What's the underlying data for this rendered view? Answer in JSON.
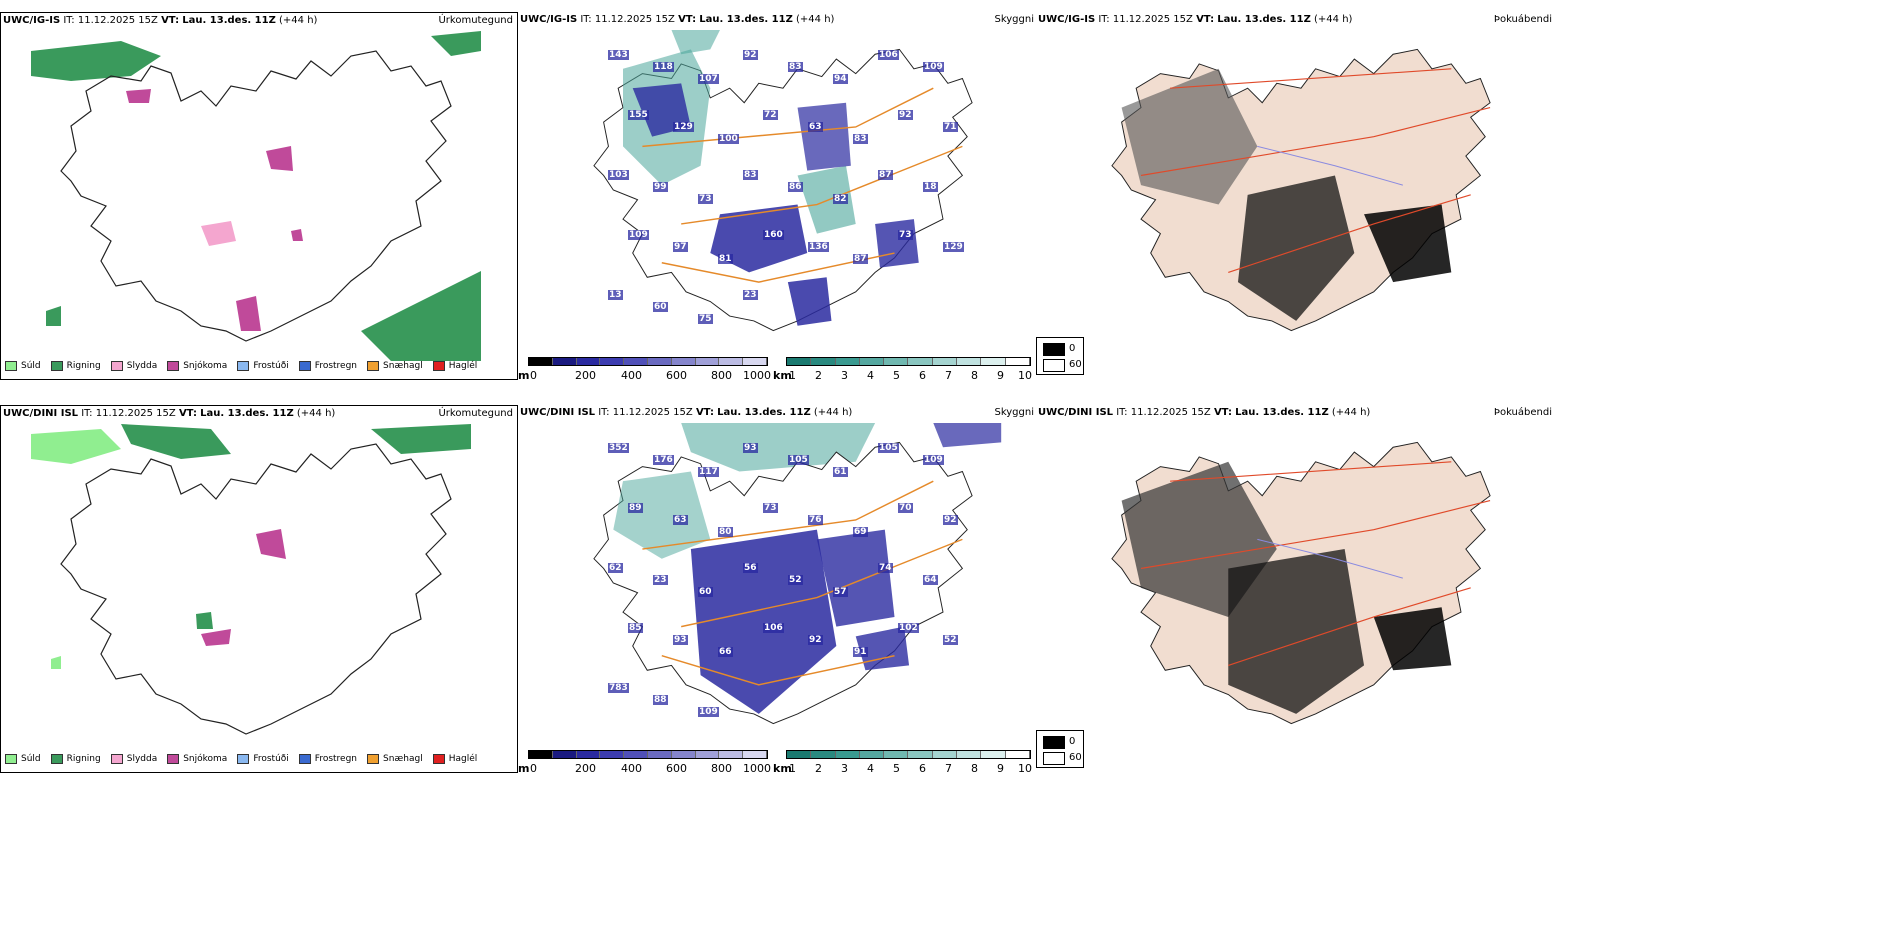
{
  "rows": [
    {
      "model": "UWC/IG-IS",
      "it_label": "IT:",
      "it_value": "11.12.2025 15Z",
      "vt_label": "VT:",
      "vt_value": "Lau. 13.des. 11Z",
      "lead": "(+44 h)",
      "precip_title": "Úrkomutegund",
      "vis_title": "Skyggni",
      "fog_title": "Þokuábendi",
      "cloud_labels": [
        "143",
        "118",
        "107",
        "92",
        "83",
        "94",
        "106",
        "109",
        "155",
        "129",
        "100",
        "72",
        "63",
        "83",
        "92",
        "71",
        "103",
        "99",
        "73",
        "83",
        "86",
        "82",
        "87",
        "18",
        "109",
        "97",
        "81",
        "160",
        "136",
        "87",
        "73",
        "129",
        "13",
        "60",
        "75",
        "23"
      ]
    },
    {
      "model": "UWC/DINI ISL",
      "it_label": "IT:",
      "it_value": "11.12.2025 15Z",
      "vt_label": "VT:",
      "vt_value": "Lau. 13.des. 11Z",
      "lead": "(+44 h)",
      "precip_title": "Úrkomutegund",
      "vis_title": "Skyggni",
      "fog_title": "Þokuábendi",
      "cloud_labels": [
        "352",
        "176",
        "117",
        "93",
        "105",
        "61",
        "105",
        "109",
        "89",
        "63",
        "80",
        "73",
        "76",
        "69",
        "70",
        "92",
        "62",
        "23",
        "60",
        "56",
        "52",
        "57",
        "74",
        "64",
        "85",
        "93",
        "66",
        "106",
        "92",
        "91",
        "102",
        "52",
        "783",
        "88",
        "109"
      ]
    }
  ],
  "precip_legend": [
    {
      "label": "Súld",
      "color": "#90ee90"
    },
    {
      "label": "Rigning",
      "color": "#3a9a5c"
    },
    {
      "label": "Slydda",
      "color": "#f4a6cf"
    },
    {
      "label": "Snjókoma",
      "color": "#c04a9a"
    },
    {
      "label": "Frostúði",
      "color": "#8ab8f0"
    },
    {
      "label": "Frostregn",
      "color": "#3a6ad0"
    },
    {
      "label": "Snæhagl",
      "color": "#f0a030"
    },
    {
      "label": "Haglél",
      "color": "#e02020"
    }
  ],
  "cloud_base_bar": {
    "unit": "m",
    "ticks": [
      "0",
      "200",
      "400",
      "600",
      "800",
      "1000"
    ]
  },
  "vis_bar": {
    "unit": "km",
    "ticks": [
      "1",
      "2",
      "3",
      "4",
      "5",
      "6",
      "7",
      "8",
      "9",
      "10"
    ]
  },
  "fog_legend": [
    {
      "label": "0",
      "color": "#000000"
    },
    {
      "label": "60",
      "color": "#ffffff"
    }
  ]
}
